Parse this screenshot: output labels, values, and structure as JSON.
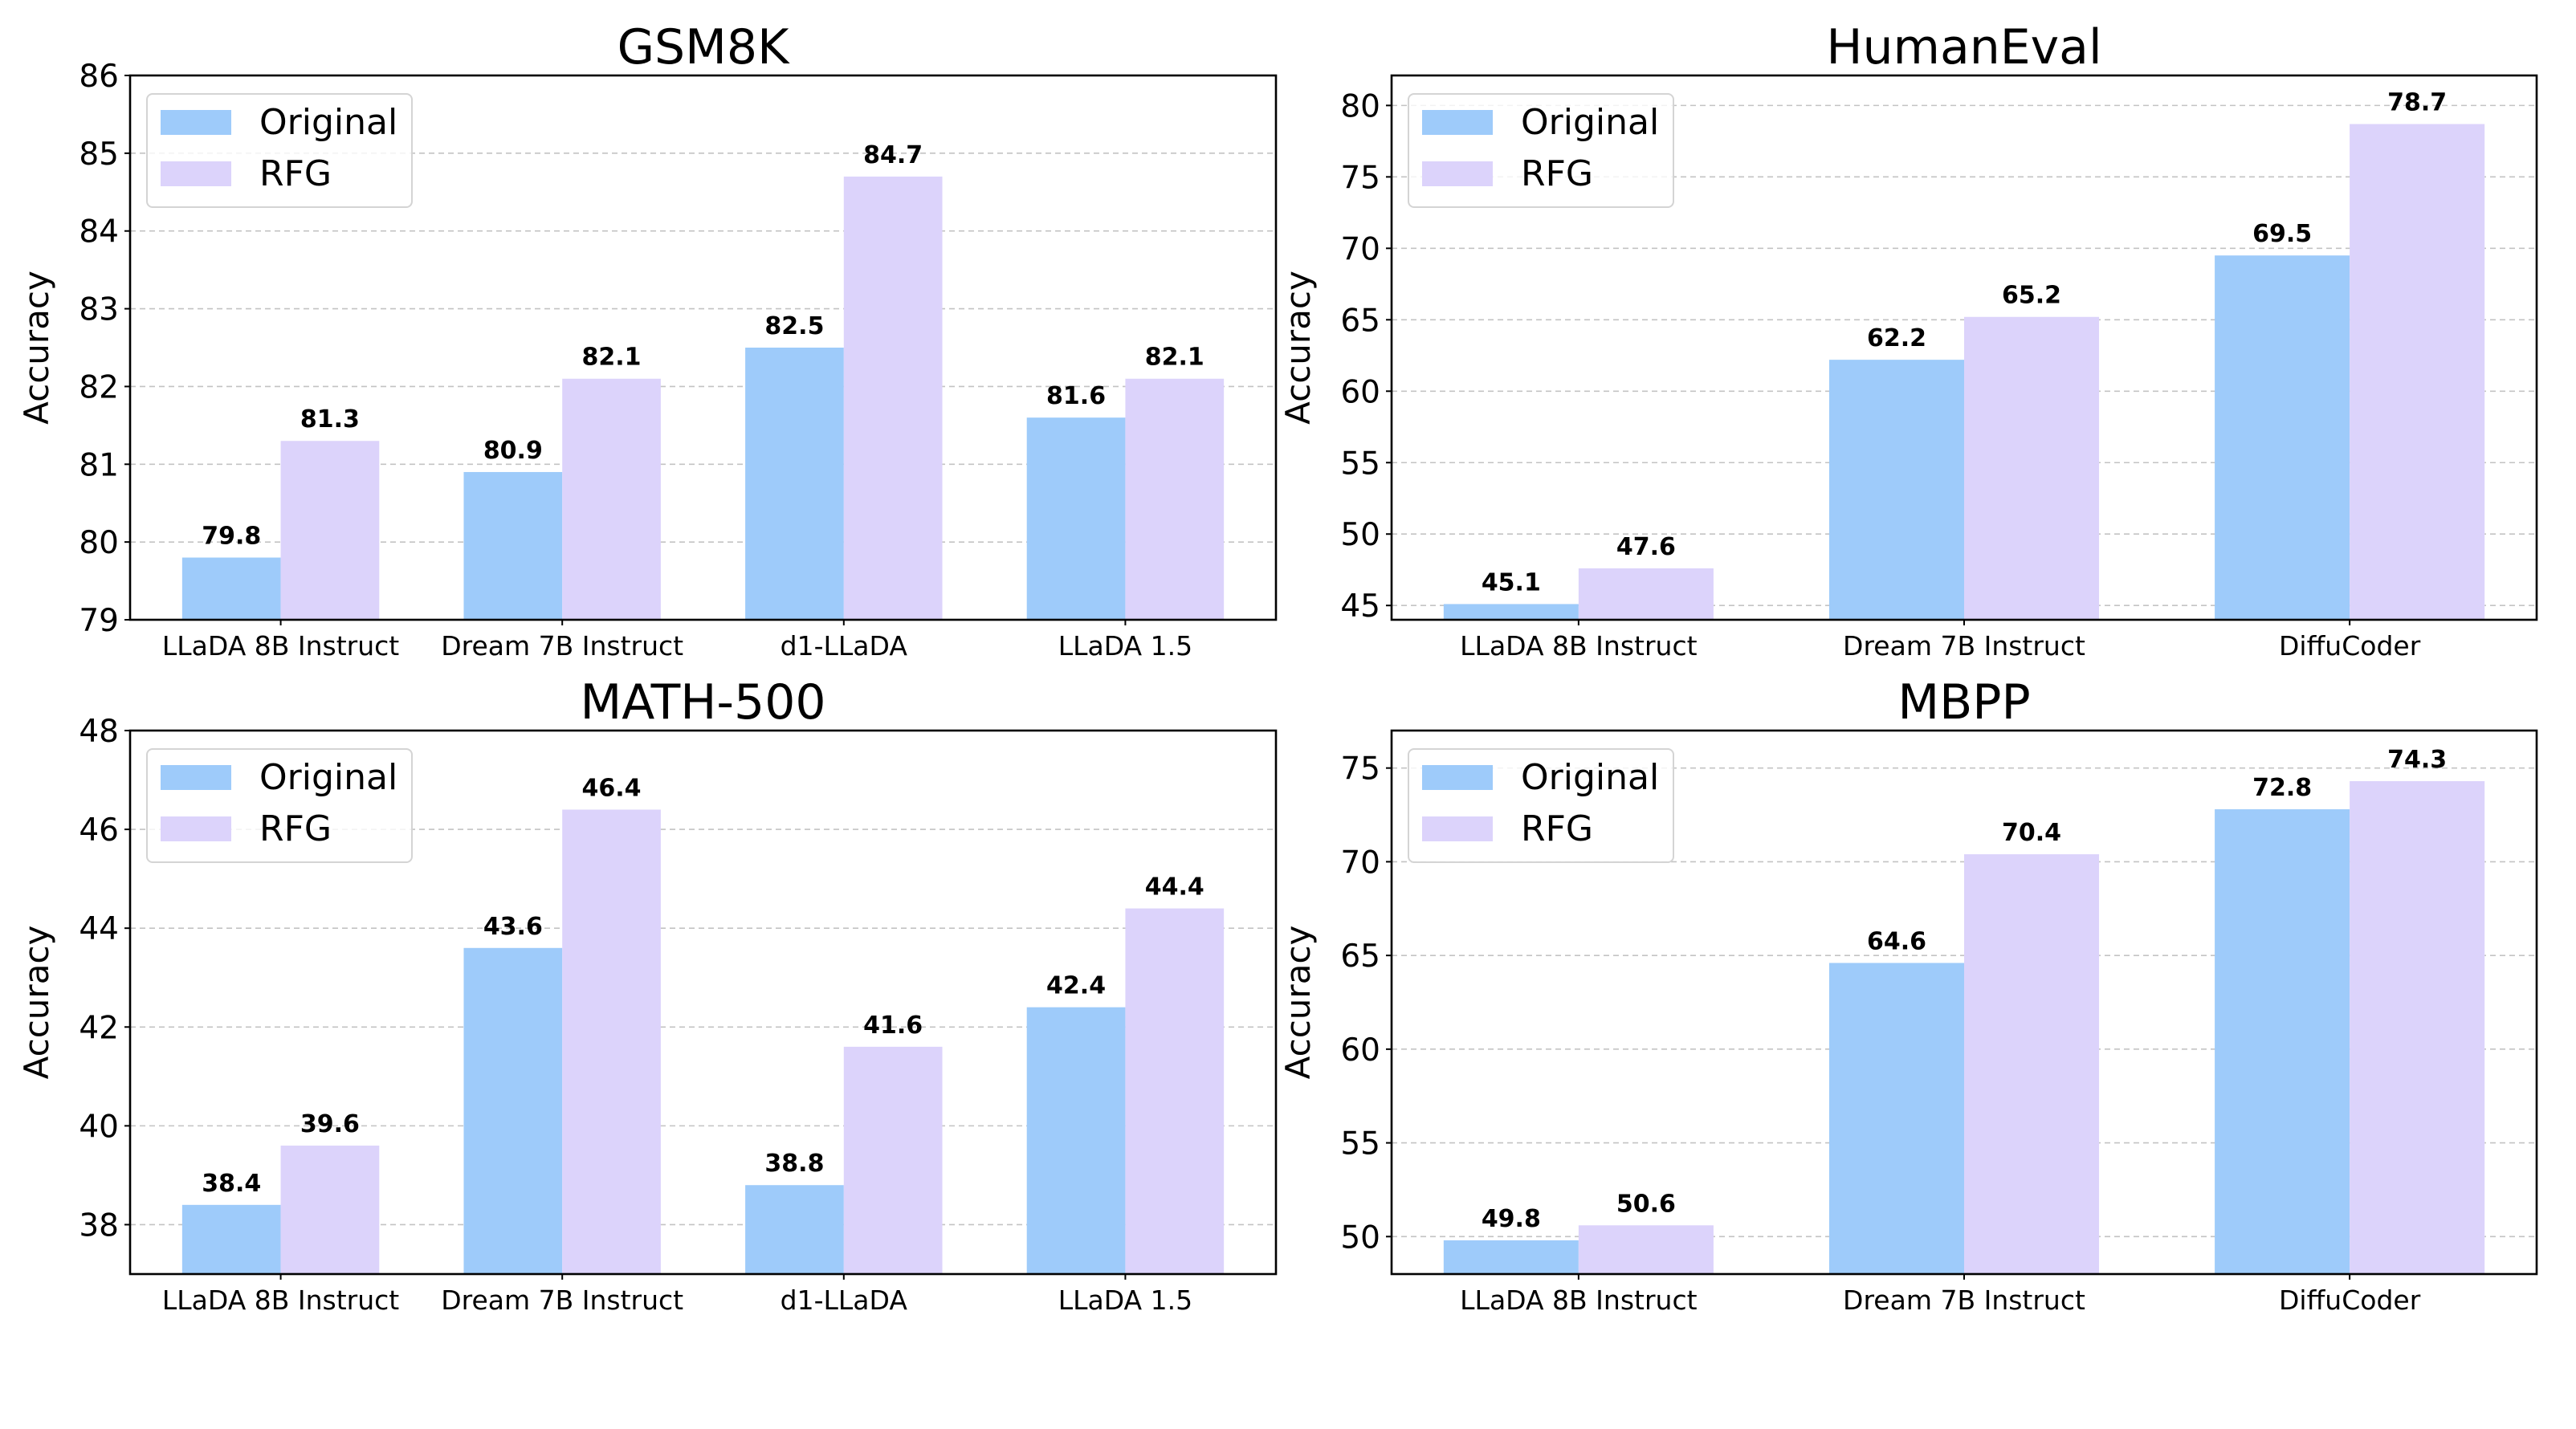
{
  "figure": {
    "background": "#ffffff",
    "colors": {
      "Original": "#9ecbfa",
      "RFG": "#dcd3fb"
    },
    "legend_labels": [
      "Original",
      "RFG"
    ]
  },
  "chart_data": [
    {
      "type": "bar",
      "title": "GSM8K",
      "xlabel": "",
      "ylabel": "Accuracy",
      "ylim": [
        79,
        86
      ],
      "yticks": [
        79,
        80,
        81,
        82,
        83,
        84,
        85,
        86
      ],
      "grid": true,
      "legend": "top-left",
      "categories": [
        "LLaDA 8B Instruct",
        "Dream 7B Instruct",
        "d1-LLaDA",
        "LLaDA 1.5"
      ],
      "series": [
        {
          "name": "Original",
          "color": "#9ecbfa",
          "values": [
            79.8,
            80.9,
            82.5,
            81.6
          ],
          "labels": [
            "79.8",
            "80.9",
            "82.5",
            "81.6"
          ]
        },
        {
          "name": "RFG",
          "color": "#dcd3fb",
          "values": [
            81.3,
            82.1,
            84.7,
            82.1
          ],
          "labels": [
            "81.3",
            "82.1",
            "84.7",
            "82.1"
          ]
        }
      ]
    },
    {
      "type": "bar",
      "title": "HumanEval",
      "xlabel": "",
      "ylabel": "Accuracy",
      "ylim": [
        44,
        82.1
      ],
      "yticks": [
        45,
        50,
        55,
        60,
        65,
        70,
        75,
        80
      ],
      "grid": true,
      "legend": "top-left",
      "categories": [
        "LLaDA 8B Instruct",
        "Dream 7B Instruct",
        "DiffuCoder"
      ],
      "series": [
        {
          "name": "Original",
          "color": "#9ecbfa",
          "values": [
            45.1,
            62.2,
            69.5
          ],
          "labels": [
            "45.1",
            "62.2",
            "69.5"
          ]
        },
        {
          "name": "RFG",
          "color": "#dcd3fb",
          "values": [
            47.6,
            65.2,
            78.7
          ],
          "labels": [
            "47.6",
            "65.2",
            "78.7"
          ]
        }
      ]
    },
    {
      "type": "bar",
      "title": "MATH-500",
      "xlabel": "",
      "ylabel": "Accuracy",
      "ylim": [
        37,
        48
      ],
      "yticks": [
        38,
        40,
        42,
        44,
        46,
        48
      ],
      "grid": true,
      "legend": "top-left",
      "categories": [
        "LLaDA 8B Instruct",
        "Dream 7B Instruct",
        "d1-LLaDA",
        "LLaDA 1.5"
      ],
      "series": [
        {
          "name": "Original",
          "color": "#9ecbfa",
          "values": [
            38.4,
            43.6,
            38.8,
            42.4
          ],
          "labels": [
            "38.4",
            "43.6",
            "38.8",
            "42.4"
          ]
        },
        {
          "name": "RFG",
          "color": "#dcd3fb",
          "values": [
            39.6,
            46.4,
            41.6,
            44.4
          ],
          "labels": [
            "39.6",
            "46.4",
            "41.6",
            "44.4"
          ]
        }
      ]
    },
    {
      "type": "bar",
      "title": "MBPP",
      "xlabel": "",
      "ylabel": "Accuracy",
      "ylim": [
        48,
        77
      ],
      "yticks": [
        50,
        55,
        60,
        65,
        70,
        75
      ],
      "grid": true,
      "legend": "top-left",
      "categories": [
        "LLaDA 8B Instruct",
        "Dream 7B Instruct",
        "DiffuCoder"
      ],
      "series": [
        {
          "name": "Original",
          "color": "#9ecbfa",
          "values": [
            49.8,
            64.6,
            72.8
          ],
          "labels": [
            "49.8",
            "64.6",
            "72.8"
          ]
        },
        {
          "name": "RFG",
          "color": "#dcd3fb",
          "values": [
            50.6,
            70.4,
            74.3
          ],
          "labels": [
            "50.6",
            "70.4",
            "74.3"
          ]
        }
      ]
    }
  ]
}
